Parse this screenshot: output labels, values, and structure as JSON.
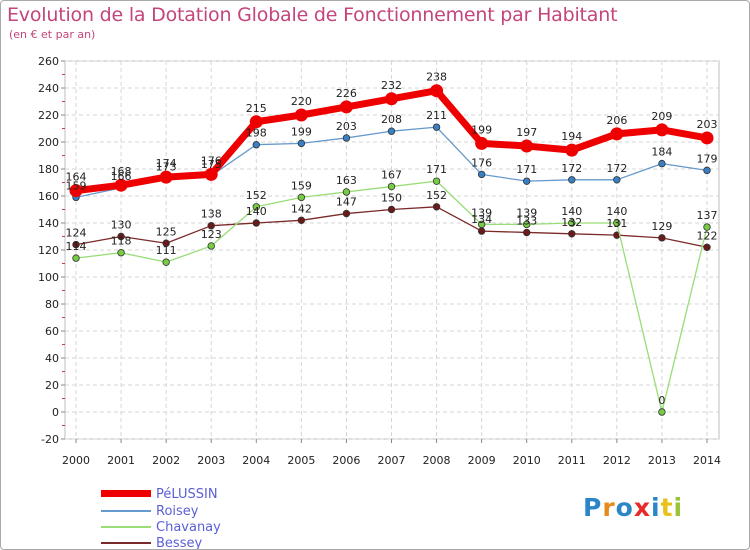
{
  "chart_data": {
    "type": "line",
    "title": "Evolution de la Dotation Globale de Fonctionnement par Habitant",
    "subtitle": "(en € et par an)",
    "xlabel": "",
    "ylabel": "",
    "ylim": [
      -20,
      260
    ],
    "y_ticks": [
      -20,
      0,
      20,
      40,
      60,
      80,
      100,
      120,
      140,
      160,
      180,
      200,
      220,
      240,
      260
    ],
    "grid": true,
    "legend_position": "bottom-left",
    "categories": [
      "2000",
      "2001",
      "2002",
      "2003",
      "2004",
      "2005",
      "2006",
      "2007",
      "2008",
      "2009",
      "2010",
      "2011",
      "2012",
      "2013",
      "2014"
    ],
    "series": [
      {
        "name": "Bessey",
        "color": "#7b2a2a",
        "marker_color": "#6b1a1a",
        "values": [
          124,
          130,
          125,
          138,
          140,
          142,
          147,
          150,
          152,
          134,
          133,
          132,
          131,
          129,
          122
        ],
        "labels": [
          "124",
          "130",
          "125",
          "138",
          "140",
          "142",
          "147",
          "150",
          "152",
          "134",
          "133",
          "132",
          "131",
          "129",
          "122"
        ]
      },
      {
        "name": "Chavanay",
        "color": "#99dd77",
        "marker_color": "#77cc44",
        "values": [
          114,
          118,
          111,
          123,
          152,
          159,
          163,
          167,
          171,
          139,
          139,
          140,
          140,
          0,
          137
        ],
        "labels": [
          "114",
          "118",
          "111",
          "123",
          "152",
          "159",
          "163",
          "167",
          "171",
          "139",
          "139",
          "140",
          "140",
          "0",
          "137"
        ]
      },
      {
        "name": "Roisey",
        "color": "#6699cc",
        "marker_color": "#3a7fc2",
        "values": [
          159,
          166,
          173,
          175,
          198,
          199,
          203,
          208,
          211,
          176,
          171,
          172,
          172,
          184,
          179
        ],
        "labels": [
          "159",
          "166",
          "173",
          "175",
          "198",
          "199",
          "203",
          "208",
          "211",
          "176",
          "171",
          "172",
          "172",
          "184",
          "179"
        ]
      },
      {
        "name": "PéLUSSIN",
        "color": "#ee0000",
        "marker_color": "#ee0000",
        "values": [
          164,
          168,
          174,
          176,
          215,
          220,
          226,
          232,
          238,
          199,
          197,
          194,
          206,
          209,
          203
        ],
        "labels": [
          "164",
          "168",
          "174",
          "176",
          "215",
          "220",
          "226",
          "232",
          "238",
          "199",
          "197",
          "194",
          "206",
          "209",
          "203"
        ]
      }
    ],
    "legend": [
      "PéLUSSIN",
      "Roisey",
      "Chavanay",
      "Bessey"
    ]
  },
  "logo": {
    "letters": [
      "P",
      "r",
      "o",
      "x",
      "i",
      "t",
      "i"
    ],
    "colors": [
      "#2b86c8",
      "#e88a1a",
      "#2b86c8",
      "#e82a2a",
      "#2b86c8",
      "#e8c21a",
      "#9ac43a"
    ]
  }
}
